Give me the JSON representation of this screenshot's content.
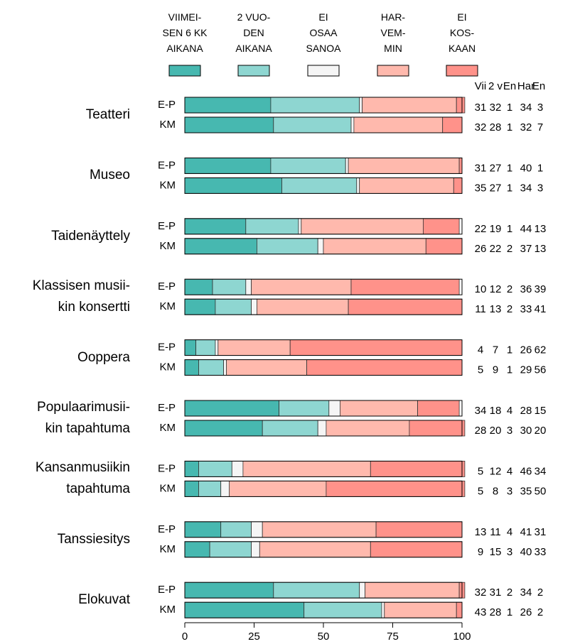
{
  "chart_data": {
    "type": "stacked_bar",
    "series": [
      {
        "name": "VIIMEI-\nSEN 6 KK\nAIKANA",
        "color": "#47b8b0"
      },
      {
        "name": "2 VUO-\nDEN\nAIKANA",
        "color": "#8ed6d1"
      },
      {
        "name": "EI\nOSAA\nSANOA",
        "color": "#f5f5f5"
      },
      {
        "name": "HAR-\nVEM-\nMIN",
        "color": "#ffb9ad"
      },
      {
        "name": "EI\nKOS-\nKAAN",
        "color": "#ff928a"
      }
    ],
    "columns": [
      "Vii",
      "2 v",
      "En",
      "Har",
      "En"
    ],
    "groups": [
      {
        "label": "Teatteri",
        "rows": [
          {
            "label": "E-P",
            "values": [
              31,
              32,
              1,
              34,
              3
            ]
          },
          {
            "label": "KM",
            "values": [
              32,
              28,
              1,
              32,
              7
            ]
          }
        ]
      },
      {
        "label": "Museo",
        "rows": [
          {
            "label": "E-P",
            "values": [
              31,
              27,
              1,
              40,
              1
            ]
          },
          {
            "label": "KM",
            "values": [
              35,
              27,
              1,
              34,
              3
            ]
          }
        ]
      },
      {
        "label": "Taidenäyttely",
        "rows": [
          {
            "label": "E-P",
            "values": [
              22,
              19,
              1,
              44,
              13
            ]
          },
          {
            "label": "KM",
            "values": [
              26,
              22,
              2,
              37,
              13
            ]
          }
        ]
      },
      {
        "label": "Klassisen musii-\nkin konsertti",
        "rows": [
          {
            "label": "E-P",
            "values": [
              10,
              12,
              2,
              36,
              39
            ]
          },
          {
            "label": "KM",
            "values": [
              11,
              13,
              2,
              33,
              41
            ]
          }
        ]
      },
      {
        "label": "Ooppera",
        "rows": [
          {
            "label": "E-P",
            "values": [
              4,
              7,
              1,
              26,
              62
            ]
          },
          {
            "label": "KM",
            "values": [
              5,
              9,
              1,
              29,
              56
            ]
          }
        ]
      },
      {
        "label": "Populaarimusii-\nkin tapahtuma",
        "rows": [
          {
            "label": "E-P",
            "values": [
              34,
              18,
              4,
              28,
              15
            ]
          },
          {
            "label": "KM",
            "values": [
              28,
              20,
              3,
              30,
              20
            ]
          }
        ]
      },
      {
        "label": "Kansanmusiikin\ntapahtuma",
        "rows": [
          {
            "label": "E-P",
            "values": [
              5,
              12,
              4,
              46,
              34
            ]
          },
          {
            "label": "KM",
            "values": [
              5,
              8,
              3,
              35,
              50
            ]
          }
        ]
      },
      {
        "label": "Tanssiesitys",
        "rows": [
          {
            "label": "E-P",
            "values": [
              13,
              11,
              4,
              41,
              31
            ]
          },
          {
            "label": "KM",
            "values": [
              9,
              15,
              3,
              40,
              33
            ]
          }
        ]
      },
      {
        "label": "Elokuvat",
        "rows": [
          {
            "label": "E-P",
            "values": [
              32,
              31,
              2,
              34,
              2
            ]
          },
          {
            "label": "KM",
            "values": [
              43,
              28,
              1,
              26,
              2
            ]
          }
        ]
      }
    ],
    "xlim": [
      0,
      100
    ],
    "xticks": [
      0,
      25,
      50,
      75,
      100
    ]
  }
}
